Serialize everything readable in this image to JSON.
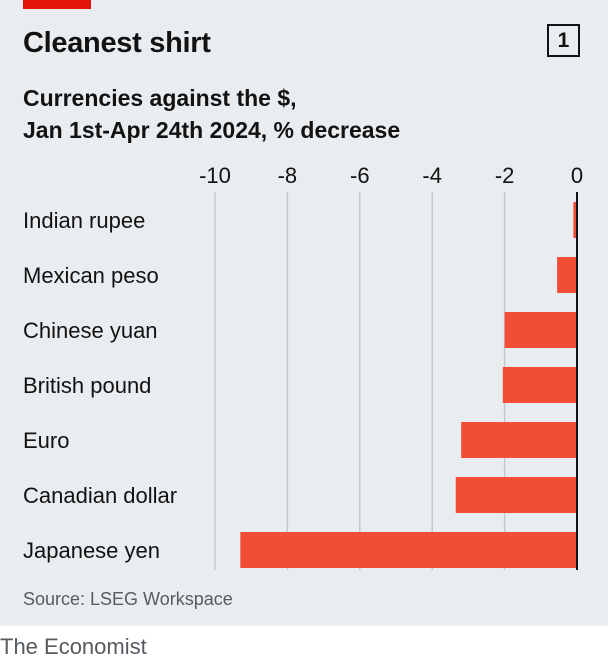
{
  "header": {
    "title": "Cleanest shirt",
    "chart_number": "1",
    "subtitle_line1": "Currencies against the $,",
    "subtitle_line2": "Jan 1st-Apr 24th 2024, % decrease"
  },
  "footer": {
    "source": "Source: LSEG Workspace",
    "brand": "The Economist"
  },
  "colors": {
    "bar": "#f04e37",
    "gridline": "#c5c9cc",
    "axis": "#121212",
    "background": "#e9edf0",
    "accent": "#e3120b"
  },
  "chart_data": {
    "type": "bar",
    "orientation": "horizontal",
    "categories": [
      "Indian rupee",
      "Mexican peso",
      "Chinese yuan",
      "British pound",
      "Euro",
      "Canadian dollar",
      "Japanese yen"
    ],
    "values": [
      -0.1,
      -0.55,
      -2.0,
      -2.05,
      -3.2,
      -3.35,
      -9.3
    ],
    "xlim": [
      -10,
      0
    ],
    "x_ticks": [
      -10,
      -8,
      -6,
      -4,
      -2,
      0
    ],
    "x_tick_labels": [
      "-10",
      "-8",
      "-6",
      "-4",
      "-2",
      "0"
    ],
    "grid": true,
    "xlabel": "",
    "ylabel": ""
  }
}
